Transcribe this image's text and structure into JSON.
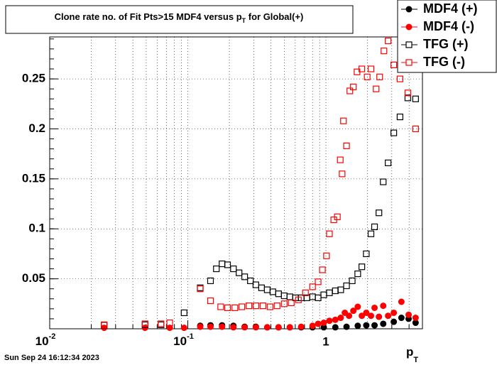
{
  "chart_data": {
    "type": "scatter",
    "title": [
      "Clone rate no. of Fit Pts>15 MDF4 versus p",
      "T",
      " for Global(+)"
    ],
    "x_label": [
      "p",
      "T"
    ],
    "timestamp": "Sun Sep 24 16:12:34 2023",
    "log_x": true,
    "grid": true,
    "legend": "top-right",
    "xlim": [
      0.01,
      5
    ],
    "xticks": [
      {
        "value": 0.01,
        "label": "10",
        "sup": "-2"
      },
      {
        "value": 0.1,
        "label": "10",
        "sup": "-1"
      },
      1
    ],
    "ylim": [
      0,
      0.292
    ],
    "yticks": [
      0.05,
      0.1,
      0.15,
      0.2,
      0.25
    ],
    "series": [
      {
        "name": "MDF4 (+)",
        "color": "#000000",
        "marker": "circle",
        "filled": true,
        "x": [
          0.123,
          0.146,
          0.177,
          0.214,
          0.258,
          0.311,
          0.376,
          0.454,
          0.548,
          0.662,
          0.8,
          0.965,
          1.17,
          1.41,
          1.7,
          1.96,
          2.25,
          2.6,
          3.1,
          3.52,
          3.97,
          4.46
        ],
        "values": [
          0.003,
          0.0035,
          0.0035,
          0.003,
          0.002,
          0.002,
          0.0015,
          0.0015,
          0.0015,
          0.0015,
          0.0015,
          0.0015,
          0.0015,
          0.002,
          0.003,
          0.0035,
          0.0035,
          0.005,
          0.007,
          0.011,
          0.01,
          0.006
        ]
      },
      {
        "name": "MDF4 (-)",
        "color": "#ff0000",
        "marker": "circle",
        "filled": true,
        "x": [
          0.0248,
          0.049,
          0.074,
          0.094,
          0.123,
          0.146,
          0.177,
          0.214,
          0.258,
          0.311,
          0.376,
          0.454,
          0.548,
          0.662,
          0.8,
          0.878,
          0.965,
          1.06,
          1.17,
          1.28,
          1.37,
          1.47,
          1.58,
          1.7,
          1.82,
          1.96,
          2.12,
          2.25,
          2.42,
          2.6,
          2.82,
          3.1,
          3.52,
          3.97,
          4.46
        ],
        "values": [
          0.001,
          0.001,
          0.001,
          0.001,
          0.002,
          0.002,
          0.002,
          0.0015,
          0.0015,
          0.0015,
          0.0015,
          0.0015,
          0.0015,
          0.002,
          0.003,
          0.005,
          0.006,
          0.008,
          0.009,
          0.011,
          0.016,
          0.013,
          0.018,
          0.022,
          0.013,
          0.016,
          0.013,
          0.021,
          0.012,
          0.023,
          0.013,
          0.016,
          0.027,
          0.014,
          0.011
        ]
      },
      {
        "name": "TFG (+)",
        "color": "#000000",
        "marker": "square",
        "filled": false,
        "x": [
          0.0248,
          0.049,
          0.064,
          0.094,
          0.123,
          0.146,
          0.161,
          0.177,
          0.194,
          0.214,
          0.235,
          0.258,
          0.284,
          0.311,
          0.342,
          0.376,
          0.413,
          0.454,
          0.499,
          0.548,
          0.603,
          0.662,
          0.728,
          0.8,
          0.878,
          0.965,
          1.06,
          1.17,
          1.28,
          1.41,
          1.55,
          1.7,
          1.82,
          1.96,
          2.12,
          2.25,
          2.42,
          2.6,
          2.82,
          3.1,
          3.44,
          3.92,
          4.46
        ],
        "values": [
          0.0036,
          0.004,
          0.004,
          0.016,
          0.041,
          0.048,
          0.06,
          0.065,
          0.064,
          0.06,
          0.056,
          0.052,
          0.048,
          0.044,
          0.041,
          0.039,
          0.037,
          0.035,
          0.033,
          0.032,
          0.031,
          0.031,
          0.031,
          0.032,
          0.031,
          0.034,
          0.036,
          0.038,
          0.039,
          0.043,
          0.048,
          0.055,
          0.062,
          0.075,
          0.095,
          0.102,
          0.116,
          0.147,
          0.166,
          0.196,
          0.212,
          0.231,
          0.23
        ]
      },
      {
        "name": "TFG (-)",
        "color": "#ff0000",
        "marker": "square",
        "filled": false,
        "x": [
          0.0248,
          0.049,
          0.064,
          0.074,
          0.123,
          0.146,
          0.173,
          0.194,
          0.219,
          0.246,
          0.277,
          0.311,
          0.35,
          0.394,
          0.443,
          0.499,
          0.561,
          0.632,
          0.711,
          0.8,
          0.878,
          0.943,
          1.01,
          1.06,
          1.14,
          1.21,
          1.27,
          1.31,
          1.34,
          1.41,
          1.49,
          1.58,
          1.68,
          1.82,
          1.99,
          2.12,
          2.31,
          2.45,
          2.63,
          2.82,
          3.1,
          3.44,
          3.92,
          4.46
        ],
        "values": [
          0.004,
          0.005,
          0.005,
          0.006,
          0.04,
          0.028,
          0.022,
          0.021,
          0.021,
          0.022,
          0.023,
          0.023,
          0.023,
          0.022,
          0.023,
          0.025,
          0.026,
          0.029,
          0.036,
          0.042,
          0.047,
          0.059,
          0.073,
          0.095,
          0.109,
          0.112,
          0.169,
          0.155,
          0.208,
          0.183,
          0.238,
          0.242,
          0.257,
          0.26,
          0.252,
          0.26,
          0.24,
          0.252,
          0.278,
          0.288,
          0.264,
          0.25,
          0.236,
          0.2
        ]
      }
    ]
  }
}
